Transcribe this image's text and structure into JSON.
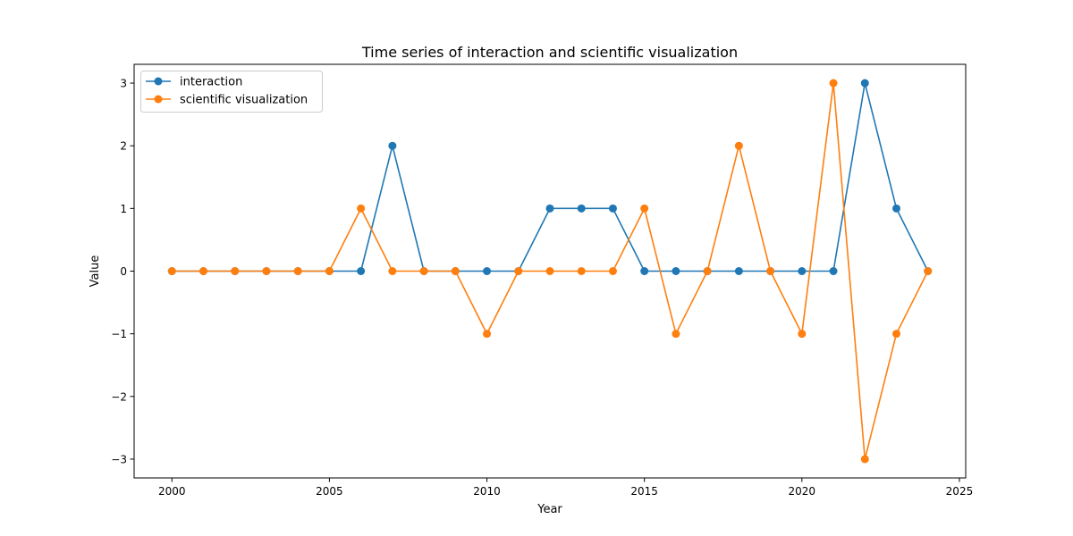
{
  "chart_data": {
    "type": "line",
    "title": "Time series of interaction and scientific visualization",
    "xlabel": "Year",
    "ylabel": "Value",
    "x": [
      2000,
      2001,
      2002,
      2003,
      2004,
      2005,
      2006,
      2007,
      2008,
      2009,
      2010,
      2011,
      2012,
      2013,
      2014,
      2015,
      2016,
      2017,
      2018,
      2019,
      2020,
      2021,
      2022,
      2023,
      2024
    ],
    "xlim": [
      1998.8,
      2025.2
    ],
    "ylim": [
      -3.3,
      3.3
    ],
    "xticks": [
      2000,
      2005,
      2010,
      2015,
      2020,
      2025
    ],
    "yticks": [
      -3,
      -2,
      -1,
      0,
      1,
      2,
      3
    ],
    "xtick_labels": [
      "2000",
      "2005",
      "2010",
      "2015",
      "2020",
      "2025"
    ],
    "ytick_labels": [
      "−3",
      "−2",
      "−1",
      "0",
      "1",
      "2",
      "3"
    ],
    "grid": false,
    "legend_position": "top-left",
    "series": [
      {
        "name": "interaction",
        "color": "#1f77b4",
        "values": [
          0,
          0,
          0,
          0,
          0,
          0,
          0,
          2,
          0,
          0,
          0,
          0,
          1,
          1,
          1,
          0,
          0,
          0,
          0,
          0,
          0,
          0,
          3,
          1,
          0
        ]
      },
      {
        "name": "scientific visualization",
        "color": "#ff7f0e",
        "values": [
          0,
          0,
          0,
          0,
          0,
          0,
          1,
          0,
          0,
          0,
          -1,
          0,
          0,
          0,
          0,
          1,
          -1,
          0,
          2,
          0,
          -1,
          3,
          -3,
          -1,
          0
        ]
      }
    ]
  }
}
